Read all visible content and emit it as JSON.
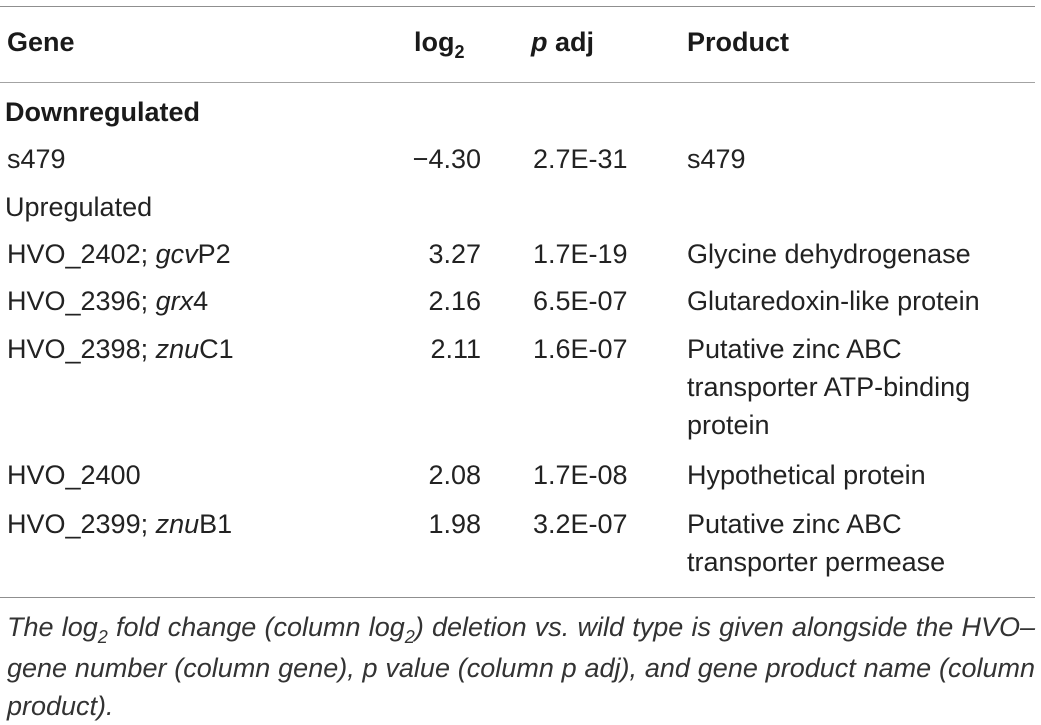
{
  "table": {
    "headers": {
      "gene": "Gene",
      "log2_base": "log",
      "log2_sub": "2",
      "padj_p": "p",
      "padj_rest": " adj",
      "product": "Product"
    },
    "sections": [
      {
        "label": "Downregulated",
        "rows": [
          {
            "gene_id": "s479",
            "gene_sep": "",
            "gene_name": "",
            "gene_suffix": "",
            "log2": "−4.30",
            "padj": "2.7E-31",
            "product": [
              "s479"
            ]
          }
        ]
      },
      {
        "label": "Upregulated",
        "rows": [
          {
            "gene_id": "HVO_2402",
            "gene_sep": "; ",
            "gene_name": "gcv",
            "gene_suffix": "P2",
            "log2": "3.27",
            "padj": "1.7E-19",
            "product": [
              "Glycine dehydrogenase"
            ]
          },
          {
            "gene_id": "HVO_2396",
            "gene_sep": "; ",
            "gene_name": "grx",
            "gene_suffix": "4",
            "log2": "2.16",
            "padj": "6.5E-07",
            "product": [
              "Glutaredoxin-like protein"
            ]
          },
          {
            "gene_id": "HVO_2398",
            "gene_sep": "; ",
            "gene_name": "znu",
            "gene_suffix": "C1",
            "log2": "2.11",
            "padj": "1.6E-07",
            "product": [
              "Putative zinc ABC",
              "transporter ATP-binding",
              "protein"
            ]
          },
          {
            "gene_id": "HVO_2400",
            "gene_sep": "",
            "gene_name": "",
            "gene_suffix": "",
            "log2": "2.08",
            "padj": "1.7E-08",
            "product": [
              "Hypothetical protein"
            ]
          },
          {
            "gene_id": "HVO_2399",
            "gene_sep": "; ",
            "gene_name": "znu",
            "gene_suffix": "B1",
            "log2": "1.98",
            "padj": "3.2E-07",
            "product": [
              "Putative zinc ABC",
              "transporter permease"
            ]
          }
        ]
      }
    ]
  },
  "footnote": {
    "part1": "The log",
    "sub1": "2",
    "part2": " fold change (column log",
    "sub2": "2",
    "part3": ") deletion vs. wild type is given alongside the HVO–gene number (column gene), p value (column p adj), and gene product name (column product)."
  }
}
